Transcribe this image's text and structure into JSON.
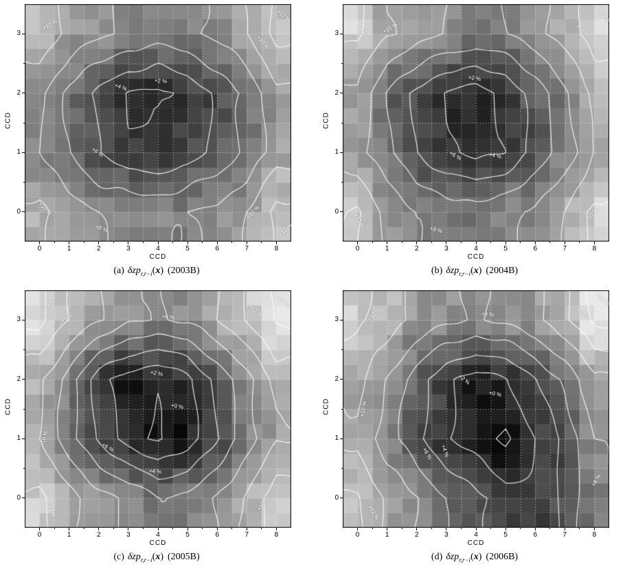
{
  "figure": {
    "xlabel": "CCD",
    "ylabel": "CCD",
    "xticks": [
      0,
      1,
      2,
      3,
      4,
      5,
      6,
      7,
      8
    ],
    "yticks": [
      0,
      1,
      2,
      3
    ],
    "caption_math": {
      "symbol": "δzp",
      "subscript": "r,r−i",
      "open": "(",
      "arg": "x",
      "close": ")"
    },
    "colors": {
      "background": "#ffffff",
      "contour_line": "#ffffff",
      "gridline": "#ffffff",
      "frame": "#000000"
    },
    "colormap": "grayscale, dark = low offset"
  },
  "chart_data": [
    {
      "type": "heatmap",
      "caption": {
        "index": "(a)",
        "year": "(2003B)"
      },
      "x": [
        0,
        1,
        2,
        3,
        4,
        5,
        6,
        7,
        8
      ],
      "y": [
        0,
        1,
        2,
        3
      ],
      "x_range": [
        -0.5,
        8.5
      ],
      "y_range": [
        -0.5,
        3.5
      ],
      "grid": true,
      "grid_step": 0.5,
      "values_percent": [
        [
          10.5,
          9.0,
          8.0,
          7.5,
          7.5,
          8.0,
          8.5,
          10.0,
          12.5
        ],
        [
          8.0,
          6.0,
          4.0,
          2.5,
          2.2,
          3.0,
          4.5,
          6.5,
          9.0
        ],
        [
          8.5,
          5.5,
          3.5,
          1.8,
          1.6,
          2.5,
          4.5,
          6.5,
          9.5
        ],
        [
          11.5,
          9.5,
          8.5,
          7.5,
          7.0,
          7.5,
          8.5,
          10.0,
          12.5
        ]
      ],
      "contour_levels": [
        2,
        4,
        6,
        8,
        10,
        12
      ],
      "contour_labels": [
        {
          "text": "+10 %",
          "x": 0.35,
          "y": 3.15,
          "rot": -30
        },
        {
          "text": "+12 %",
          "x": 8.25,
          "y": 3.3,
          "rot": 40
        },
        {
          "text": "+10 %",
          "x": 7.55,
          "y": 2.85,
          "rot": 50
        },
        {
          "text": "+2 %",
          "x": 4.1,
          "y": 2.2,
          "rot": 5
        },
        {
          "text": "+4 %",
          "x": 2.75,
          "y": 2.1,
          "rot": 20
        },
        {
          "text": "+6 %",
          "x": 1.95,
          "y": 1.0,
          "rot": 35
        },
        {
          "text": "+10 %",
          "x": 0.2,
          "y": 0.05,
          "rot": 45
        },
        {
          "text": "+8 %",
          "x": 2.1,
          "y": -0.28,
          "rot": 20
        },
        {
          "text": "+10 %",
          "x": 7.2,
          "y": 0.0,
          "rot": -45
        },
        {
          "text": "+12 %",
          "x": 8.3,
          "y": -0.3,
          "rot": -45
        }
      ]
    },
    {
      "type": "heatmap",
      "caption": {
        "index": "(b)",
        "year": "(2004B)"
      },
      "x": [
        0,
        1,
        2,
        3,
        4,
        5,
        6,
        7,
        8
      ],
      "y": [
        0,
        1,
        2,
        3
      ],
      "x_range": [
        -0.5,
        8.5
      ],
      "y_range": [
        -0.5,
        3.5
      ],
      "grid": true,
      "grid_step": 0.5,
      "values_percent": [
        [
          12.0,
          9.5,
          8.0,
          7.2,
          7.0,
          7.5,
          8.5,
          10.0,
          12.5
        ],
        [
          9.0,
          6.5,
          4.0,
          2.3,
          1.3,
          2.3,
          4.5,
          7.0,
          10.0
        ],
        [
          9.5,
          6.0,
          3.5,
          1.8,
          1.1,
          2.4,
          5.0,
          7.5,
          10.5
        ],
        [
          12.5,
          10.0,
          9.0,
          8.0,
          7.5,
          8.0,
          9.0,
          11.0,
          13.0
        ]
      ],
      "contour_levels": [
        2,
        4,
        6,
        8,
        10,
        12
      ],
      "contour_labels": [
        {
          "text": "+12 %",
          "x": 0.25,
          "y": 3.05,
          "rot": -55
        },
        {
          "text": "+10 %",
          "x": 1.1,
          "y": 3.1,
          "rot": -30
        },
        {
          "text": "+10 %",
          "x": 7.6,
          "y": 3.05,
          "rot": 40
        },
        {
          "text": "+12 %",
          "x": 8.3,
          "y": 3.3,
          "rot": 40
        },
        {
          "text": "+2 %",
          "x": 3.95,
          "y": 2.25,
          "rot": 10
        },
        {
          "text": "+6 %",
          "x": 3.3,
          "y": 0.95,
          "rot": 30
        },
        {
          "text": "+4 %",
          "x": 4.65,
          "y": 0.95,
          "rot": 10
        },
        {
          "text": "+12 %",
          "x": 0.05,
          "y": -0.15,
          "rot": 60
        },
        {
          "text": "+8 %",
          "x": 2.65,
          "y": -0.3,
          "rot": 15
        },
        {
          "text": "+10 %",
          "x": 7.9,
          "y": -0.05,
          "rot": -50
        }
      ]
    },
    {
      "type": "heatmap",
      "caption": {
        "index": "(c)",
        "year": "(2005B)"
      },
      "x": [
        0,
        1,
        2,
        3,
        4,
        5,
        6,
        7,
        8
      ],
      "y": [
        0,
        1,
        2,
        3
      ],
      "x_range": [
        -0.5,
        8.5
      ],
      "y_range": [
        -0.5,
        3.5
      ],
      "grid": true,
      "grid_step": 0.5,
      "values_percent": [
        [
          12.5,
          10.5,
          9.0,
          7.5,
          6.2,
          6.5,
          8.0,
          10.5,
          13.0
        ],
        [
          10.0,
          7.0,
          3.5,
          1.2,
          -0.4,
          1.0,
          4.0,
          7.0,
          10.0
        ],
        [
          10.5,
          7.0,
          3.0,
          0.8,
          0.2,
          1.5,
          4.5,
          7.5,
          10.5
        ],
        [
          14.5,
          12.0,
          10.0,
          8.5,
          7.8,
          8.2,
          10.0,
          12.0,
          14.5
        ]
      ],
      "contour_levels": [
        0,
        2,
        4,
        6,
        8,
        10,
        12,
        14
      ],
      "contour_labels": [
        {
          "text": "+14 %",
          "x": 0.3,
          "y": 3.25,
          "rot": -40
        },
        {
          "text": "+12 %",
          "x": 0.9,
          "y": 3.0,
          "rot": -40
        },
        {
          "text": "+8 %",
          "x": 4.35,
          "y": 3.05,
          "rot": 5
        },
        {
          "text": "+12 %",
          "x": 7.3,
          "y": 3.15,
          "rot": 40
        },
        {
          "text": "+14 %",
          "x": 8.25,
          "y": 3.3,
          "rot": 40
        },
        {
          "text": "+2 %",
          "x": 3.95,
          "y": 2.1,
          "rot": 10
        },
        {
          "text": "+0 %",
          "x": 4.65,
          "y": 1.55,
          "rot": 10
        },
        {
          "text": "+10 %",
          "x": 0.15,
          "y": 1.0,
          "rot": -75
        },
        {
          "text": "+6 %",
          "x": 2.3,
          "y": 0.85,
          "rot": 30
        },
        {
          "text": "+4 %",
          "x": 3.9,
          "y": 0.45,
          "rot": 5
        },
        {
          "text": "+12 %",
          "x": 0.35,
          "y": -0.2,
          "rot": 55
        },
        {
          "text": "+10 %",
          "x": 7.55,
          "y": -0.1,
          "rot": -55
        }
      ]
    },
    {
      "type": "heatmap",
      "caption": {
        "index": "(d)",
        "year": "(2006B)"
      },
      "x": [
        0,
        1,
        2,
        3,
        4,
        5,
        6,
        7,
        8
      ],
      "y": [
        0,
        1,
        2,
        3
      ],
      "x_range": [
        -0.5,
        8.5
      ],
      "y_range": [
        -0.5,
        3.5
      ],
      "grid": true,
      "grid_step": 0.5,
      "values_percent": [
        [
          12.3,
          9.5,
          8.0,
          6.0,
          4.5,
          3.0,
          2.2,
          4.5,
          7.8
        ],
        [
          9.5,
          7.0,
          4.5,
          2.2,
          0.8,
          -0.4,
          2.0,
          4.5,
          8.0
        ],
        [
          10.5,
          8.0,
          5.0,
          2.5,
          1.0,
          1.8,
          4.0,
          6.5,
          9.5
        ],
        [
          12.5,
          11.0,
          9.5,
          8.5,
          7.8,
          8.5,
          9.5,
          11.5,
          14.5
        ]
      ],
      "contour_levels": [
        0,
        2,
        4,
        6,
        8,
        10,
        12,
        14
      ],
      "contour_labels": [
        {
          "text": "+12 %",
          "x": 0.55,
          "y": 3.1,
          "rot": -50
        },
        {
          "text": "+8 %",
          "x": 4.4,
          "y": 3.1,
          "rot": 5
        },
        {
          "text": "+12 %",
          "x": 7.65,
          "y": 3.1,
          "rot": 40
        },
        {
          "text": "+14 %",
          "x": 8.3,
          "y": 3.35,
          "rot": 40
        },
        {
          "text": "+2 %",
          "x": 3.6,
          "y": 2.0,
          "rot": 40
        },
        {
          "text": "+0 %",
          "x": 4.65,
          "y": 1.75,
          "rot": 10
        },
        {
          "text": "+10 %",
          "x": 0.2,
          "y": 1.5,
          "rot": -80
        },
        {
          "text": "+4 %",
          "x": 2.95,
          "y": 0.8,
          "rot": 70
        },
        {
          "text": "+6 %",
          "x": 2.35,
          "y": 0.75,
          "rot": 60
        },
        {
          "text": "+12 %",
          "x": 0.55,
          "y": -0.25,
          "rot": 60
        },
        {
          "text": "+8 %",
          "x": 8.05,
          "y": 0.3,
          "rot": -60
        }
      ]
    }
  ]
}
